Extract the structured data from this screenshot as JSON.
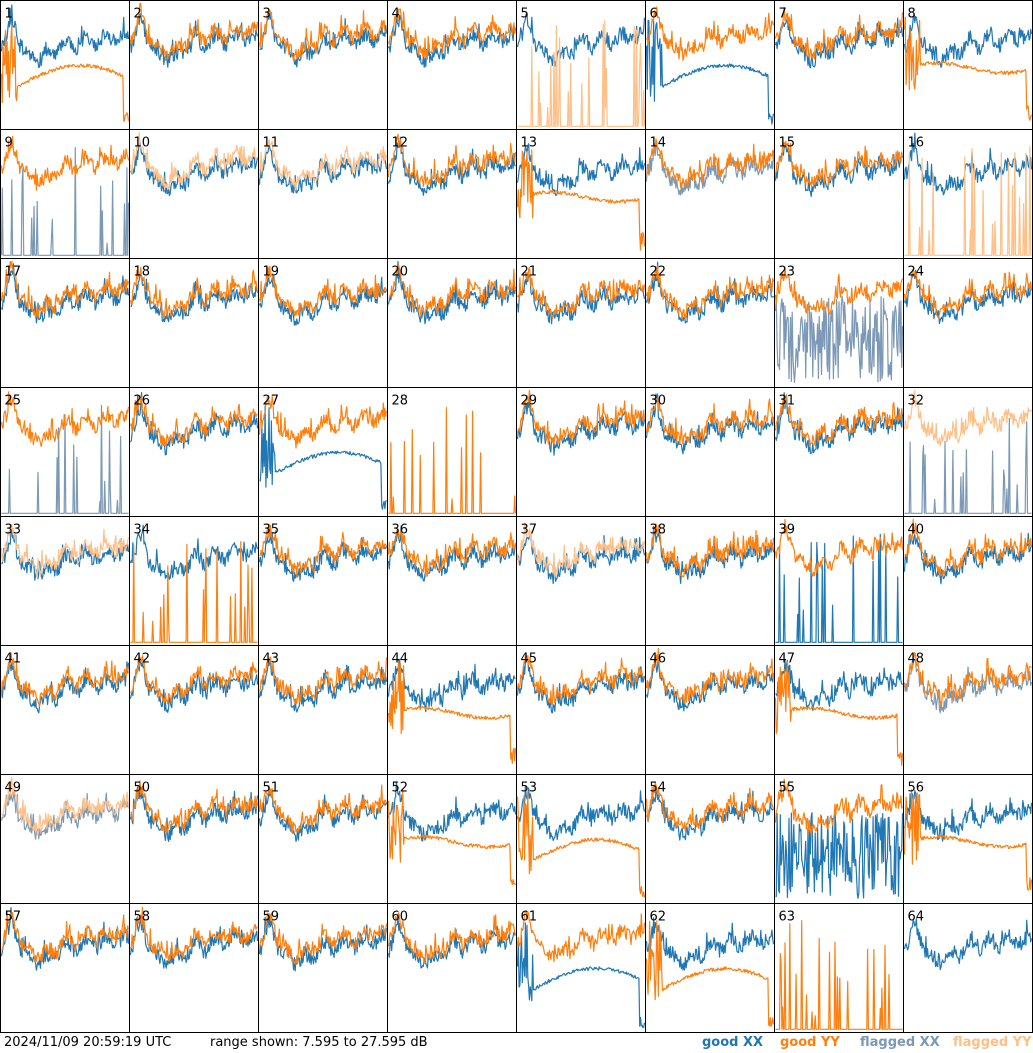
{
  "footer": {
    "timestamp": "2024/11/09 20:59:19 UTC",
    "range_text": "range shown: 7.595 to 27.595 dB"
  },
  "chart_data": {
    "type": "line",
    "panel_count": 64,
    "columns": 8,
    "range_db": [
      7.595,
      27.595
    ],
    "legend": [
      {
        "label": "good XX",
        "color": "#1f77b4"
      },
      {
        "label": "good YY",
        "color": "#ff7f0e"
      },
      {
        "label": "flagged XX",
        "color": "#7b98b4"
      },
      {
        "label": "flagged YY",
        "color": "#ffbf87"
      }
    ],
    "panels": [
      {
        "label": "1",
        "xx": "good",
        "yy": "good",
        "xx_shape": "normal",
        "yy_shape": "dip"
      },
      {
        "label": "2",
        "xx": "good",
        "yy": "good",
        "xx_shape": "normal",
        "yy_shape": "normal"
      },
      {
        "label": "3",
        "xx": "good",
        "yy": "good",
        "xx_shape": "normal",
        "yy_shape": "normal"
      },
      {
        "label": "4",
        "xx": "good",
        "yy": "good",
        "xx_shape": "normal",
        "yy_shape": "normal"
      },
      {
        "label": "5",
        "xx": "good",
        "yy": "flagged",
        "xx_shape": "normal",
        "yy_shape": "spikes"
      },
      {
        "label": "6",
        "xx": "good",
        "yy": "good",
        "xx_shape": "dip",
        "yy_shape": "normal"
      },
      {
        "label": "7",
        "xx": "good",
        "yy": "good",
        "xx_shape": "normal",
        "yy_shape": "normal"
      },
      {
        "label": "8",
        "xx": "good",
        "yy": "good",
        "xx_shape": "normal",
        "yy_shape": "flat"
      },
      {
        "label": "9",
        "xx": "flagged",
        "yy": "good",
        "xx_shape": "spikes",
        "yy_shape": "normal"
      },
      {
        "label": "10",
        "xx": "good",
        "yy": "flagged",
        "xx_shape": "normal",
        "yy_shape": "normal"
      },
      {
        "label": "11",
        "xx": "good",
        "yy": "flagged",
        "xx_shape": "normal",
        "yy_shape": "normal"
      },
      {
        "label": "12",
        "xx": "good",
        "yy": "good",
        "xx_shape": "normal",
        "yy_shape": "normal"
      },
      {
        "label": "13",
        "xx": "good",
        "yy": "good",
        "xx_shape": "normal",
        "yy_shape": "flat"
      },
      {
        "label": "14",
        "xx": "flagged",
        "yy": "good",
        "xx_shape": "normal",
        "yy_shape": "normal"
      },
      {
        "label": "15",
        "xx": "good",
        "yy": "good",
        "xx_shape": "normal",
        "yy_shape": "normal"
      },
      {
        "label": "16",
        "xx": "good",
        "yy": "flagged",
        "xx_shape": "normal",
        "yy_shape": "spikes"
      },
      {
        "label": "17",
        "xx": "good",
        "yy": "good",
        "xx_shape": "normal",
        "yy_shape": "normal"
      },
      {
        "label": "18",
        "xx": "good",
        "yy": "good",
        "xx_shape": "normal",
        "yy_shape": "normal"
      },
      {
        "label": "19",
        "xx": "good",
        "yy": "good",
        "xx_shape": "normal",
        "yy_shape": "normal"
      },
      {
        "label": "20",
        "xx": "good",
        "yy": "good",
        "xx_shape": "normal",
        "yy_shape": "normal"
      },
      {
        "label": "21",
        "xx": "good",
        "yy": "good",
        "xx_shape": "normal",
        "yy_shape": "normal"
      },
      {
        "label": "22",
        "xx": "good",
        "yy": "good",
        "xx_shape": "normal",
        "yy_shape": "normal"
      },
      {
        "label": "23",
        "xx": "flagged",
        "yy": "good",
        "xx_shape": "noise",
        "yy_shape": "normal"
      },
      {
        "label": "24",
        "xx": "good",
        "yy": "good",
        "xx_shape": "normal",
        "yy_shape": "normal"
      },
      {
        "label": "25",
        "xx": "flagged",
        "yy": "good",
        "xx_shape": "spikes",
        "yy_shape": "normal"
      },
      {
        "label": "26",
        "xx": "good",
        "yy": "good",
        "xx_shape": "normal",
        "yy_shape": "normal"
      },
      {
        "label": "27",
        "xx": "good",
        "yy": "good",
        "xx_shape": "dip",
        "yy_shape": "normal"
      },
      {
        "label": "28",
        "xx": "none",
        "yy": "good",
        "xx_shape": "none",
        "yy_shape": "spikes"
      },
      {
        "label": "29",
        "xx": "good",
        "yy": "good",
        "xx_shape": "normal",
        "yy_shape": "normal"
      },
      {
        "label": "30",
        "xx": "good",
        "yy": "good",
        "xx_shape": "normal",
        "yy_shape": "normal"
      },
      {
        "label": "31",
        "xx": "good",
        "yy": "good",
        "xx_shape": "normal",
        "yy_shape": "normal"
      },
      {
        "label": "32",
        "xx": "flagged",
        "yy": "flagged",
        "xx_shape": "spikes",
        "yy_shape": "normal"
      },
      {
        "label": "33",
        "xx": "good",
        "yy": "flagged",
        "xx_shape": "normal",
        "yy_shape": "normal"
      },
      {
        "label": "34",
        "xx": "good",
        "yy": "good",
        "xx_shape": "normal",
        "yy_shape": "spikes"
      },
      {
        "label": "35",
        "xx": "good",
        "yy": "good",
        "xx_shape": "normal",
        "yy_shape": "normal"
      },
      {
        "label": "36",
        "xx": "good",
        "yy": "good",
        "xx_shape": "normal",
        "yy_shape": "normal"
      },
      {
        "label": "37",
        "xx": "good",
        "yy": "flagged",
        "xx_shape": "normal",
        "yy_shape": "normal"
      },
      {
        "label": "38",
        "xx": "good",
        "yy": "good",
        "xx_shape": "normal",
        "yy_shape": "normal"
      },
      {
        "label": "39",
        "xx": "good",
        "yy": "good",
        "xx_shape": "spikes",
        "yy_shape": "normal"
      },
      {
        "label": "40",
        "xx": "good",
        "yy": "good",
        "xx_shape": "normal",
        "yy_shape": "normal"
      },
      {
        "label": "41",
        "xx": "good",
        "yy": "good",
        "xx_shape": "normal",
        "yy_shape": "normal"
      },
      {
        "label": "42",
        "xx": "good",
        "yy": "good",
        "xx_shape": "normal",
        "yy_shape": "normal"
      },
      {
        "label": "43",
        "xx": "good",
        "yy": "good",
        "xx_shape": "normal",
        "yy_shape": "normal"
      },
      {
        "label": "44",
        "xx": "good",
        "yy": "good",
        "xx_shape": "normal",
        "yy_shape": "flat"
      },
      {
        "label": "45",
        "xx": "good",
        "yy": "good",
        "xx_shape": "normal",
        "yy_shape": "normal"
      },
      {
        "label": "46",
        "xx": "good",
        "yy": "good",
        "xx_shape": "normal",
        "yy_shape": "normal"
      },
      {
        "label": "47",
        "xx": "good",
        "yy": "good",
        "xx_shape": "normal",
        "yy_shape": "flat"
      },
      {
        "label": "48",
        "xx": "flagged",
        "yy": "good",
        "xx_shape": "normal",
        "yy_shape": "normal"
      },
      {
        "label": "49",
        "xx": "flagged",
        "yy": "flagged",
        "xx_shape": "normal",
        "yy_shape": "normal"
      },
      {
        "label": "50",
        "xx": "good",
        "yy": "good",
        "xx_shape": "normal",
        "yy_shape": "normal"
      },
      {
        "label": "51",
        "xx": "good",
        "yy": "good",
        "xx_shape": "normal",
        "yy_shape": "normal"
      },
      {
        "label": "52",
        "xx": "good",
        "yy": "good",
        "xx_shape": "normal",
        "yy_shape": "flat"
      },
      {
        "label": "53",
        "xx": "good",
        "yy": "good",
        "xx_shape": "normal",
        "yy_shape": "dip"
      },
      {
        "label": "54",
        "xx": "good",
        "yy": "good",
        "xx_shape": "normal",
        "yy_shape": "normal"
      },
      {
        "label": "55",
        "xx": "good",
        "yy": "good",
        "xx_shape": "noise",
        "yy_shape": "normal"
      },
      {
        "label": "56",
        "xx": "good",
        "yy": "good",
        "xx_shape": "normal",
        "yy_shape": "flat"
      },
      {
        "label": "57",
        "xx": "good",
        "yy": "good",
        "xx_shape": "normal",
        "yy_shape": "normal"
      },
      {
        "label": "58",
        "xx": "good",
        "yy": "good",
        "xx_shape": "normal",
        "yy_shape": "normal"
      },
      {
        "label": "59",
        "xx": "good",
        "yy": "good",
        "xx_shape": "normal",
        "yy_shape": "normal"
      },
      {
        "label": "60",
        "xx": "good",
        "yy": "good",
        "xx_shape": "normal",
        "yy_shape": "normal"
      },
      {
        "label": "61",
        "xx": "good",
        "yy": "good",
        "xx_shape": "dip",
        "yy_shape": "normal"
      },
      {
        "label": "62",
        "xx": "good",
        "yy": "good",
        "xx_shape": "normal",
        "yy_shape": "dip"
      },
      {
        "label": "63",
        "xx": "none",
        "yy": "good",
        "xx_shape": "none",
        "yy_shape": "spikes"
      },
      {
        "label": "64",
        "xx": "good",
        "yy": "none",
        "xx_shape": "normal",
        "yy_shape": "none"
      }
    ]
  }
}
